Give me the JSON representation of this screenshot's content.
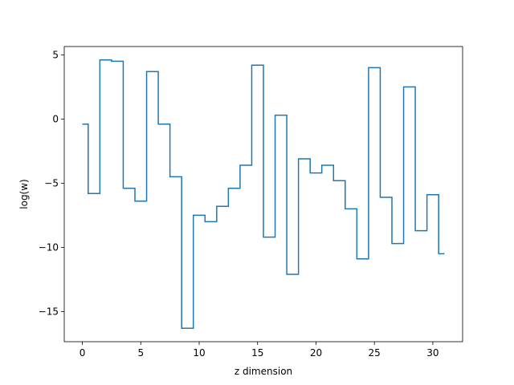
{
  "chart_data": {
    "type": "line",
    "drawstyle": "steps-mid",
    "title": "",
    "xlabel": "z dimension",
    "ylabel": "log(w)",
    "xlim": [
      -1.55,
      32.55
    ],
    "ylim": [
      -17.35,
      5.65
    ],
    "xticks": [
      0,
      5,
      10,
      15,
      20,
      25,
      30
    ],
    "yticks": [
      5,
      0,
      -5,
      -10,
      -15
    ],
    "xtick_labels": [
      "0",
      "5",
      "10",
      "15",
      "20",
      "25",
      "30"
    ],
    "ytick_labels": [
      "5",
      "0",
      "−5",
      "−10",
      "−15"
    ],
    "grid": false,
    "line_color": "#1f77b4",
    "series": [
      {
        "x": [
          0,
          1,
          2,
          3,
          4,
          5,
          6,
          7,
          8,
          9,
          10,
          11,
          12,
          13,
          14,
          15,
          16,
          17,
          18,
          19,
          20,
          21,
          22,
          23,
          24,
          25,
          26,
          27,
          28,
          29,
          30,
          31
        ],
        "values": [
          -0.4,
          -5.8,
          4.6,
          4.5,
          -5.4,
          -6.4,
          3.7,
          -0.4,
          -4.5,
          -16.3,
          -7.5,
          -8.0,
          -6.8,
          -5.4,
          -3.6,
          4.2,
          -9.2,
          0.3,
          -12.1,
          -3.1,
          -4.2,
          -3.6,
          -4.8,
          -7.0,
          -10.9,
          4.0,
          -6.1,
          -9.7,
          2.5,
          -8.7,
          -5.9,
          -10.5
        ]
      }
    ]
  }
}
